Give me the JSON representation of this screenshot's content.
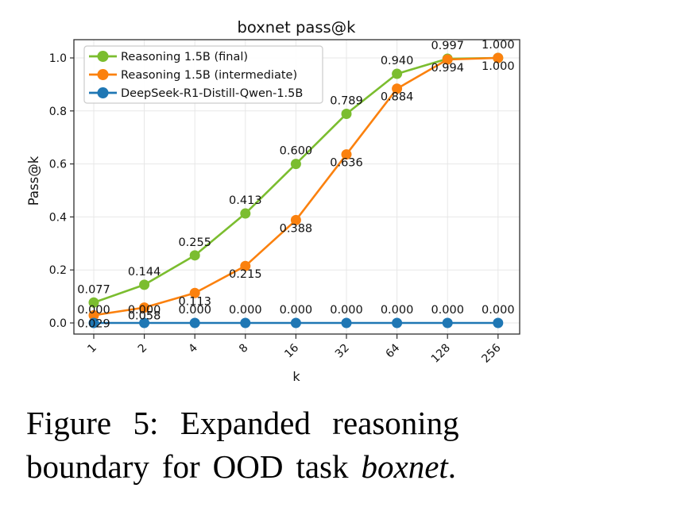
{
  "chart_data": {
    "type": "line",
    "title": "boxnet pass@k",
    "xlabel": "k",
    "ylabel": "Pass@k",
    "x_scale": "log2",
    "categories": [
      1,
      2,
      4,
      8,
      16,
      32,
      64,
      128,
      256
    ],
    "series": [
      {
        "name": "Reasoning 1.5B (final)",
        "color": "#7bbd2f",
        "values": [
          0.077,
          0.144,
          0.255,
          0.413,
          0.6,
          0.789,
          0.94,
          0.997,
          1.0
        ],
        "label_position": "above"
      },
      {
        "name": "Reasoning 1.5B (intermediate)",
        "color": "#fb810e",
        "values": [
          0.029,
          0.058,
          0.113,
          0.215,
          0.388,
          0.636,
          0.884,
          0.994,
          1.0
        ],
        "label_position": "below"
      },
      {
        "name": "DeepSeek-R1-Distill-Qwen-1.5B",
        "color": "#1f77b4",
        "values": [
          0.0,
          0.0,
          0.0,
          0.0,
          0.0,
          0.0,
          0.0,
          0.0,
          0.0
        ],
        "label_position": "above"
      }
    ],
    "ytick_labels": [
      "0.0",
      "0.2",
      "0.4",
      "0.6",
      "0.8",
      "1.0"
    ],
    "ylim": [
      -0.05,
      1.07
    ],
    "grid": true,
    "legend_position": "upper left",
    "value_label_format": "3dp",
    "grid_color": "#e7e7e7",
    "spine_color": "#2e2e2e"
  },
  "caption": {
    "line1": "Figure 5: Expanded reasoning",
    "line2_pre": "boundary for OOD task ",
    "line2_italic": "boxnet",
    "line2_post": "."
  }
}
